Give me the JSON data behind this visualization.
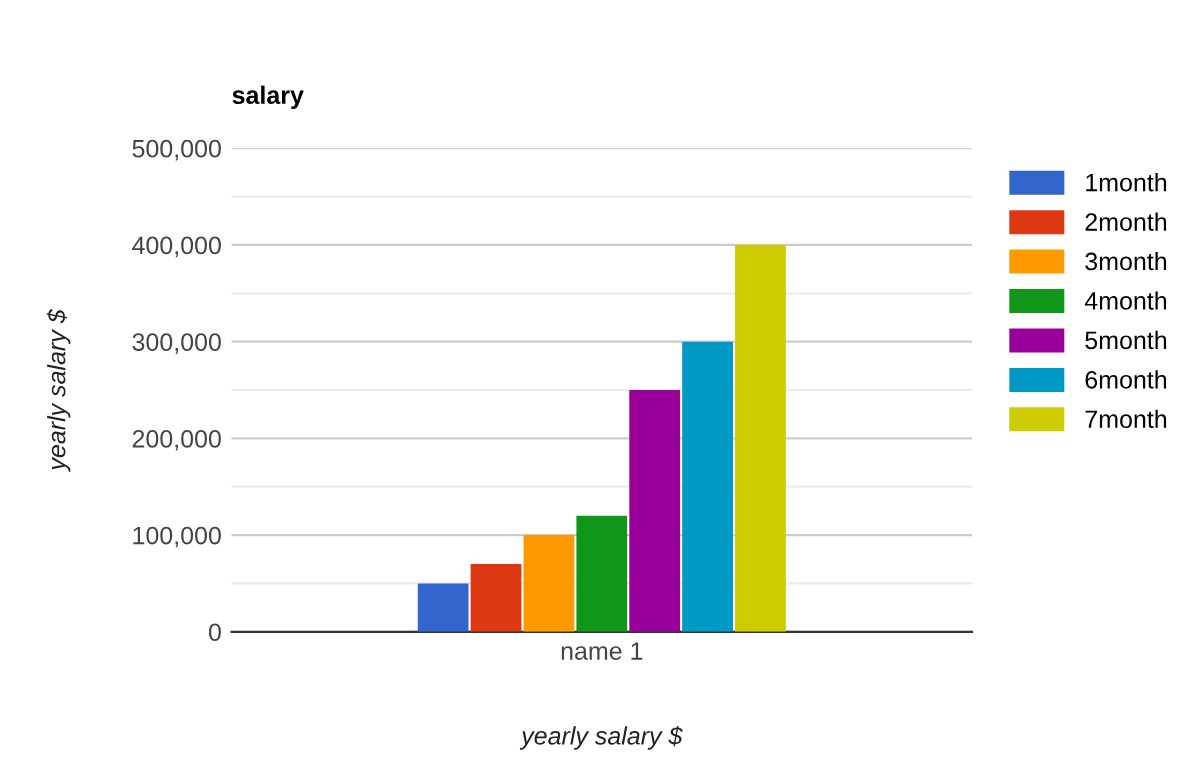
{
  "chart_data": {
    "type": "bar",
    "title": "salary",
    "xlabel": "yearly salary $",
    "ylabel": "yearly salary $",
    "categories": [
      "name 1"
    ],
    "series": [
      {
        "name": "1month",
        "color": "#3366cc",
        "values": [
          50000
        ]
      },
      {
        "name": "2month",
        "color": "#dc3912",
        "values": [
          70000
        ]
      },
      {
        "name": "3month",
        "color": "#ff9900",
        "values": [
          100000
        ]
      },
      {
        "name": "4month",
        "color": "#109618",
        "values": [
          120000
        ]
      },
      {
        "name": "5month",
        "color": "#990099",
        "values": [
          250000
        ]
      },
      {
        "name": "6month",
        "color": "#0099c6",
        "values": [
          300000
        ]
      },
      {
        "name": "7month",
        "color": "#cccc00",
        "values": [
          400000
        ]
      }
    ],
    "ylim": [
      0,
      500000
    ],
    "yticks": [
      {
        "value": 0,
        "label": "0"
      },
      {
        "value": 50000,
        "label": null
      },
      {
        "value": 100000,
        "label": "100,000"
      },
      {
        "value": 150000,
        "label": null
      },
      {
        "value": 200000,
        "label": "200,000"
      },
      {
        "value": 250000,
        "label": null
      },
      {
        "value": 300000,
        "label": "300,000"
      },
      {
        "value": 350000,
        "label": null
      },
      {
        "value": 400000,
        "label": "400,000"
      },
      {
        "value": 450000,
        "label": null
      },
      {
        "value": 500000,
        "label": "500,000"
      }
    ],
    "grid": "y",
    "legend": "right"
  }
}
